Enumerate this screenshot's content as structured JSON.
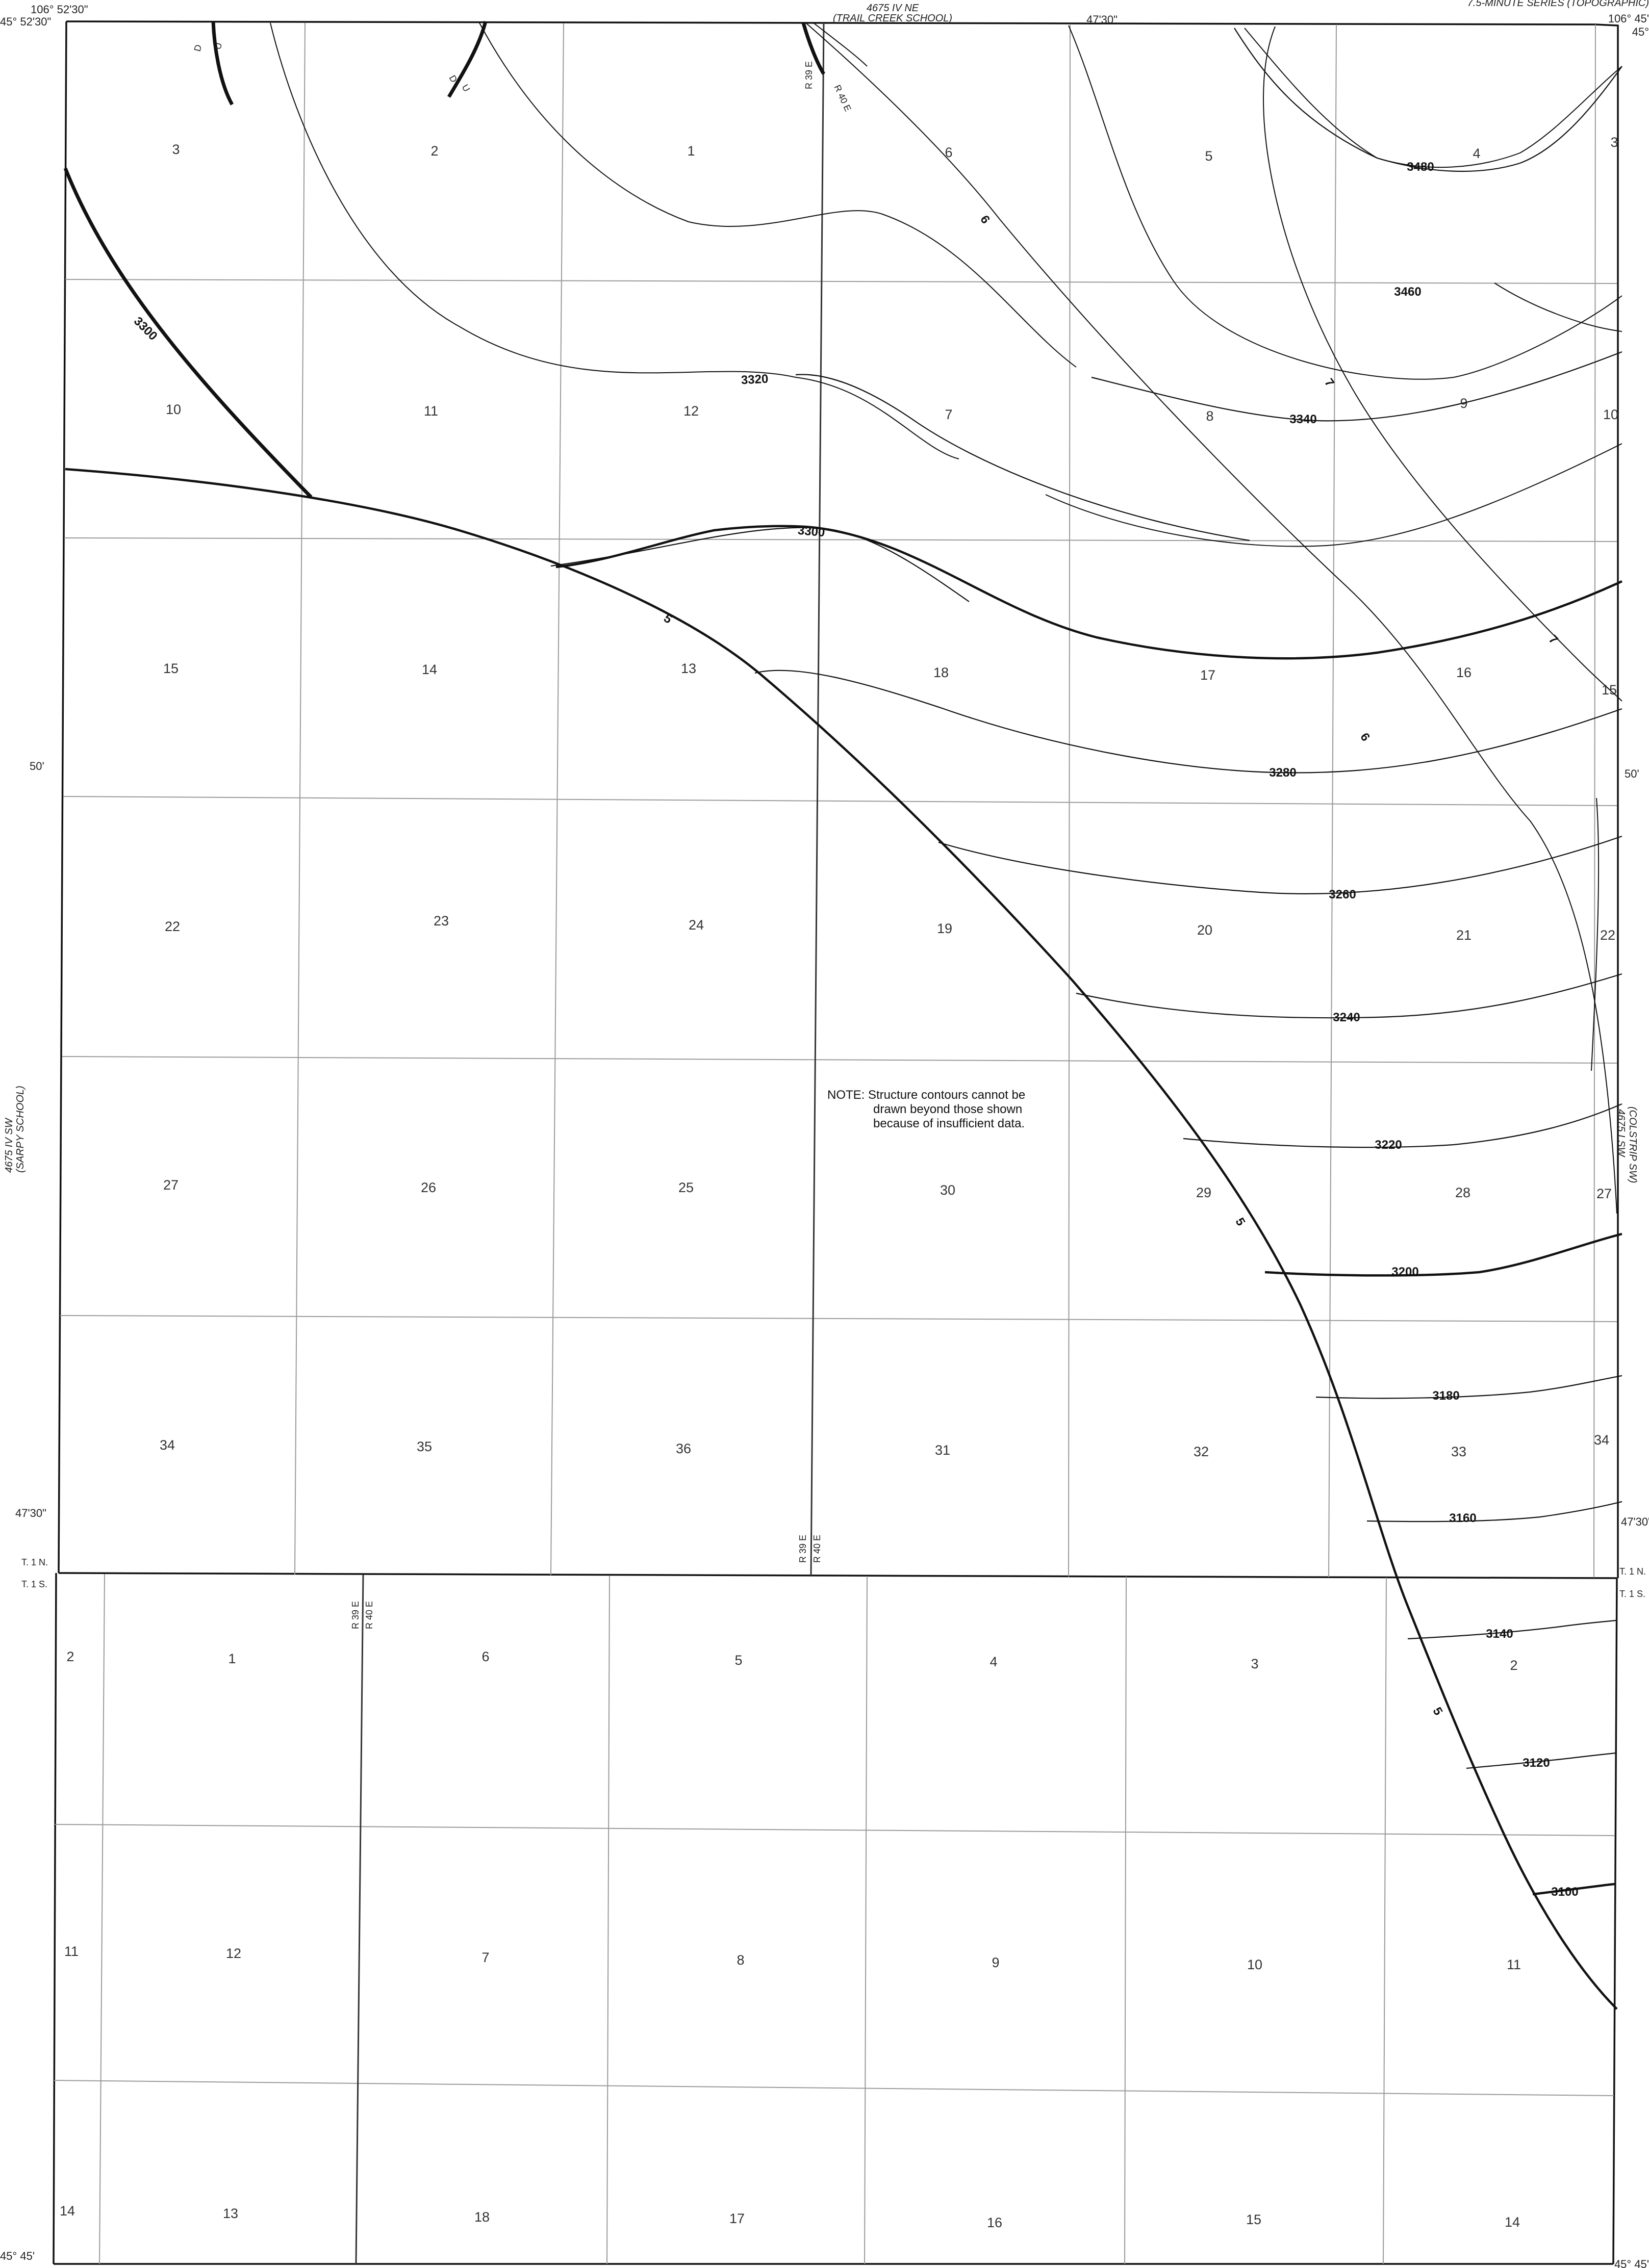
{
  "header": {
    "series_title": "7.5-MINUTE SERIES (TOPOGRAPHIC)",
    "north_quad_code": "4675 IV NE",
    "north_quad_name": "(TRAIL CREEK SCHOOL)",
    "west_quad_code": "4675 IV SW",
    "west_quad_name": "(SARPY SCHOOL)",
    "east_quad_code": "4675 I SW",
    "east_quad_name": "(COLSTRIP SW)"
  },
  "coordinates": {
    "top_left_long": "106° 52'30\"",
    "top_left_lat": "45° 52'30\"",
    "top_mid_long": "47'30\"",
    "top_right_long": "106° 45'",
    "top_right_lat": "45°",
    "left_50": "50'",
    "right_50": "50'",
    "left_4730": "47'30\"",
    "right_4730": "47'30\"",
    "bottom_left_lat": "45° 45'",
    "bottom_right_lat": "45° 45'"
  },
  "townships": {
    "north_left": "T. 1 N.",
    "south_left": "T. 1 S.",
    "north_right": "T. 1 N.",
    "south_right": "T. 1 S."
  },
  "ranges": {
    "r39e": "R 39 E",
    "r40e": "R 40 E"
  },
  "fault_labels": {
    "down": "D",
    "up": "U"
  },
  "note": {
    "line1": "NOTE:  Structure contours cannot be",
    "line2": "drawn beyond those shown",
    "line3": "because of insufficient data."
  },
  "sections_north": [
    "3",
    "2",
    "1",
    "6",
    "5",
    "4",
    "3",
    "10",
    "11",
    "12",
    "7",
    "8",
    "9",
    "10",
    "15",
    "14",
    "13",
    "18",
    "17",
    "16",
    "15",
    "22",
    "23",
    "24",
    "19",
    "20",
    "21",
    "22",
    "27",
    "26",
    "25",
    "30",
    "29",
    "28",
    "27",
    "34",
    "35",
    "36",
    "31",
    "32",
    "33",
    "34"
  ],
  "sections_south": [
    "2",
    "1",
    "6",
    "5",
    "4",
    "3",
    "2",
    "11",
    "12",
    "7",
    "8",
    "9",
    "10",
    "11",
    "14",
    "13",
    "18",
    "17",
    "16",
    "15",
    "14"
  ],
  "structure_contours": [
    "3480",
    "3460",
    "3340",
    "3320",
    "3300",
    "3300",
    "3280",
    "3260",
    "3240",
    "3220",
    "3200",
    "3180",
    "3160",
    "3140",
    "3120",
    "3100"
  ],
  "isopach_labels": [
    "6",
    "6",
    "7",
    "7",
    "5",
    "5",
    "5"
  ],
  "colors": {
    "ink": "#111111",
    "grid": "#9a9a9a",
    "paper": "#ffffff"
  }
}
